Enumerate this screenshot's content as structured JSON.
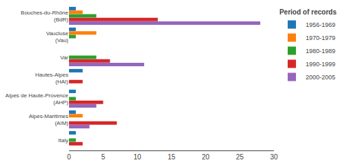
{
  "chart_data": {
    "type": "bar",
    "orientation": "horizontal",
    "categories": [
      "Bouches-du-Rhône\n(BdR)",
      "Vaucluse\n(Vau)",
      "Var",
      "Hautes-Alpes\n(HAï)",
      "Alpes de Haute-Provence\n(AHP)",
      "Alpes-Maritimes\n(AïM)",
      "Italy"
    ],
    "series": [
      {
        "name": "1956-1969",
        "values": [
          1,
          1,
          0,
          2,
          1,
          1,
          1
        ]
      },
      {
        "name": "1970-1979",
        "values": [
          2,
          4,
          0,
          0,
          0,
          2,
          0
        ]
      },
      {
        "name": "1980-1989",
        "values": [
          4,
          1,
          4,
          0,
          1,
          0,
          1
        ]
      },
      {
        "name": "1990-1999",
        "values": [
          13,
          0,
          6,
          2,
          5,
          7,
          2
        ]
      },
      {
        "name": "2000-2005",
        "values": [
          28,
          0,
          11,
          0,
          4,
          3,
          0
        ]
      }
    ],
    "xlim": [
      0,
      30
    ],
    "xticks": [
      0,
      5,
      10,
      15,
      20,
      25,
      30
    ],
    "grid": false,
    "legend": "right",
    "legend_title": "Period of records"
  }
}
